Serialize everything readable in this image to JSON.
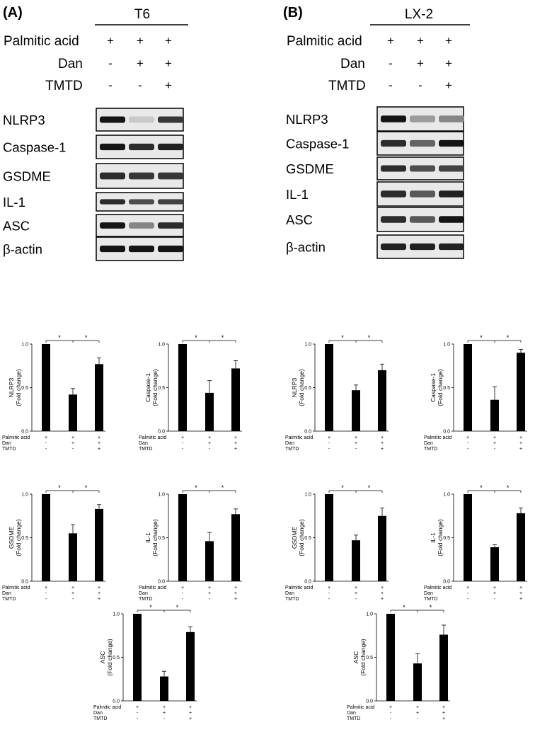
{
  "panels": [
    {
      "label": "(A)",
      "cell_line": "T6",
      "treatments": [
        {
          "name": "Palmitic acid",
          "signs": [
            "+",
            "+",
            "+"
          ]
        },
        {
          "name": "Dan",
          "signs": [
            "-",
            "+",
            "+"
          ]
        },
        {
          "name": "TMTD",
          "signs": [
            "-",
            "-",
            "+"
          ]
        }
      ],
      "blots": [
        {
          "label": "NLRP3",
          "intensity": [
            0.95,
            0.15,
            0.8
          ]
        },
        {
          "label": "Caspase-1",
          "intensity": [
            0.95,
            0.85,
            0.9
          ]
        },
        {
          "label": "GSDME",
          "intensity": [
            0.85,
            0.8,
            0.8
          ]
        },
        {
          "label": "IL-1",
          "intensity": [
            0.85,
            0.7,
            0.75
          ]
        },
        {
          "label": "ASC",
          "intensity": [
            0.95,
            0.45,
            0.85
          ]
        },
        {
          "label": "β-actin",
          "intensity": [
            0.95,
            0.95,
            0.95
          ]
        }
      ]
    },
    {
      "label": "(B)",
      "cell_line": "LX-2",
      "treatments": [
        {
          "name": "Palmitic acid",
          "signs": [
            "+",
            "+",
            "+"
          ]
        },
        {
          "name": "Dan",
          "signs": [
            "-",
            "+",
            "+"
          ]
        },
        {
          "name": "TMTD",
          "signs": [
            "-",
            "-",
            "+"
          ]
        }
      ],
      "blots": [
        {
          "label": "NLRP3",
          "intensity": [
            0.95,
            0.35,
            0.45
          ]
        },
        {
          "label": "Caspase-1",
          "intensity": [
            0.85,
            0.6,
            0.95
          ]
        },
        {
          "label": "GSDME",
          "intensity": [
            0.85,
            0.7,
            0.75
          ]
        },
        {
          "label": "IL-1",
          "intensity": [
            0.85,
            0.65,
            0.9
          ]
        },
        {
          "label": "ASC",
          "intensity": [
            0.85,
            0.65,
            0.95
          ]
        },
        {
          "label": "β-actin",
          "intensity": [
            0.9,
            0.9,
            0.9
          ]
        }
      ]
    }
  ],
  "chart_data": [
    {
      "type": "bar",
      "panel": "A",
      "ylabel": "NLRP3\n(Fold change)",
      "categories": [
        "1",
        "2",
        "3"
      ],
      "values": [
        1.0,
        0.42,
        0.77
      ],
      "errors": [
        0,
        0.07,
        0.07
      ],
      "ylim": [
        0,
        1.0
      ],
      "yticks": [
        "0.0",
        "0.5",
        "1.0"
      ],
      "significance": [
        "*",
        "*"
      ],
      "xrows": [
        {
          "name": "Palmitic acid",
          "signs": [
            "+",
            "+",
            "+"
          ]
        },
        {
          "name": "Dan",
          "signs": [
            "-",
            "+",
            "+"
          ]
        },
        {
          "name": "TMTD",
          "signs": [
            "-",
            "-",
            "+"
          ]
        }
      ]
    },
    {
      "type": "bar",
      "panel": "A",
      "ylabel": "Caspase-1\n(Fold change)",
      "categories": [
        "1",
        "2",
        "3"
      ],
      "values": [
        1.0,
        0.44,
        0.72
      ],
      "errors": [
        0,
        0.14,
        0.09
      ],
      "ylim": [
        0,
        1.0
      ],
      "yticks": [
        "0.0",
        "0.5",
        "1.0"
      ],
      "significance": [
        "*",
        "*"
      ],
      "xrows": [
        {
          "name": "Palmitic acid",
          "signs": [
            "+",
            "+",
            "+"
          ]
        },
        {
          "name": "Dan",
          "signs": [
            "-",
            "+",
            "+"
          ]
        },
        {
          "name": "TMTD",
          "signs": [
            "-",
            "-",
            "+"
          ]
        }
      ]
    },
    {
      "type": "bar",
      "panel": "B",
      "ylabel": "NLRP3\n(Fold change)",
      "categories": [
        "1",
        "2",
        "3"
      ],
      "values": [
        1.0,
        0.47,
        0.7
      ],
      "errors": [
        0,
        0.06,
        0.07
      ],
      "ylim": [
        0,
        1.0
      ],
      "yticks": [
        "0.0",
        "0.5",
        "1.0"
      ],
      "significance": [
        "*",
        "*"
      ],
      "xrows": [
        {
          "name": "Palmitic acid",
          "signs": [
            "+",
            "+",
            "+"
          ]
        },
        {
          "name": "Dan",
          "signs": [
            "-",
            "+",
            "+"
          ]
        },
        {
          "name": "TMTD",
          "signs": [
            "-",
            "-",
            "+"
          ]
        }
      ]
    },
    {
      "type": "bar",
      "panel": "B",
      "ylabel": "Caspase-1\n(Fold change)",
      "categories": [
        "1",
        "2",
        "3"
      ],
      "values": [
        1.0,
        0.36,
        0.9
      ],
      "errors": [
        0,
        0.15,
        0.04
      ],
      "ylim": [
        0,
        1.0
      ],
      "yticks": [
        "0.0",
        "0.5",
        "1.0"
      ],
      "significance": [
        "*",
        "*"
      ],
      "xrows": [
        {
          "name": "Palmitic acid",
          "signs": [
            "+",
            "+",
            "+"
          ]
        },
        {
          "name": "Dan",
          "signs": [
            "-",
            "+",
            "+"
          ]
        },
        {
          "name": "TMTD",
          "signs": [
            "-",
            "-",
            "+"
          ]
        }
      ]
    },
    {
      "type": "bar",
      "panel": "A",
      "ylabel": "GSDME\n(Fold change)",
      "categories": [
        "1",
        "2",
        "3"
      ],
      "values": [
        1.0,
        0.55,
        0.83
      ],
      "errors": [
        0,
        0.1,
        0.05
      ],
      "ylim": [
        0,
        1.0
      ],
      "yticks": [
        "0.0",
        "0.5",
        "1.0"
      ],
      "significance": [
        "*",
        "*"
      ],
      "xrows": [
        {
          "name": "Palmitic acid",
          "signs": [
            "+",
            "+",
            "+"
          ]
        },
        {
          "name": "Dan",
          "signs": [
            "-",
            "+",
            "+"
          ]
        },
        {
          "name": "TMTD",
          "signs": [
            "-",
            "-",
            "+"
          ]
        }
      ]
    },
    {
      "type": "bar",
      "panel": "A",
      "ylabel": "IL-1\n(Fold change)",
      "categories": [
        "1",
        "2",
        "3"
      ],
      "values": [
        1.0,
        0.46,
        0.77
      ],
      "errors": [
        0,
        0.1,
        0.06
      ],
      "ylim": [
        0,
        1.0
      ],
      "yticks": [
        "0.0",
        "0.5",
        "1.0"
      ],
      "significance": [
        "*",
        "*"
      ],
      "xrows": [
        {
          "name": "Palmitic acid",
          "signs": [
            "+",
            "+",
            "+"
          ]
        },
        {
          "name": "Dan",
          "signs": [
            "-",
            "+",
            "+"
          ]
        },
        {
          "name": "TMTD",
          "signs": [
            "-",
            "-",
            "+"
          ]
        }
      ]
    },
    {
      "type": "bar",
      "panel": "B",
      "ylabel": "GSDME\n(Fold change)",
      "categories": [
        "1",
        "2",
        "3"
      ],
      "values": [
        1.0,
        0.47,
        0.75
      ],
      "errors": [
        0,
        0.06,
        0.09
      ],
      "ylim": [
        0,
        1.0
      ],
      "yticks": [
        "0.0",
        "0.5",
        "1.0"
      ],
      "significance": [
        "*",
        "*"
      ],
      "xrows": [
        {
          "name": "Palmitic acid",
          "signs": [
            "+",
            "+",
            "+"
          ]
        },
        {
          "name": "Dan",
          "signs": [
            "-",
            "+",
            "+"
          ]
        },
        {
          "name": "TMTD",
          "signs": [
            "-",
            "-",
            "+"
          ]
        }
      ]
    },
    {
      "type": "bar",
      "panel": "B",
      "ylabel": "IL-1\n(Fold change)",
      "categories": [
        "1",
        "2",
        "3"
      ],
      "values": [
        1.0,
        0.39,
        0.78
      ],
      "errors": [
        0,
        0.03,
        0.06
      ],
      "ylim": [
        0,
        1.0
      ],
      "yticks": [
        "0.0",
        "0.5",
        "1.0"
      ],
      "significance": [
        "*",
        "*"
      ],
      "xrows": [
        {
          "name": "Palmitic acid",
          "signs": [
            "+",
            "+",
            "+"
          ]
        },
        {
          "name": "Dan",
          "signs": [
            "-",
            "+",
            "+"
          ]
        },
        {
          "name": "TMTD",
          "signs": [
            "-",
            "-",
            "+"
          ]
        }
      ]
    },
    {
      "type": "bar",
      "panel": "A",
      "ylabel": "ASC\n(Fold change)",
      "categories": [
        "1",
        "2",
        "3"
      ],
      "values": [
        1.0,
        0.28,
        0.79
      ],
      "errors": [
        0,
        0.06,
        0.06
      ],
      "ylim": [
        0,
        1.0
      ],
      "yticks": [
        "0.0",
        "0.5",
        "1.0"
      ],
      "significance": [
        "*",
        "*"
      ],
      "xrows": [
        {
          "name": "Palmitic acid",
          "signs": [
            "+",
            "+",
            "+"
          ]
        },
        {
          "name": "Dan",
          "signs": [
            "-",
            "+",
            "+"
          ]
        },
        {
          "name": "TMTD",
          "signs": [
            "-",
            "-",
            "+"
          ]
        }
      ]
    },
    {
      "type": "bar",
      "panel": "B",
      "ylabel": "ASC\n(Fold change)",
      "categories": [
        "1",
        "2",
        "3"
      ],
      "values": [
        1.0,
        0.43,
        0.76
      ],
      "errors": [
        0,
        0.11,
        0.11
      ],
      "ylim": [
        0,
        1.0
      ],
      "yticks": [
        "0.0",
        "0.5",
        "1.0"
      ],
      "significance": [
        "*",
        "*"
      ],
      "xrows": [
        {
          "name": "Palmitic acid",
          "signs": [
            "+",
            "+",
            "+"
          ]
        },
        {
          "name": "Dan",
          "signs": [
            "-",
            "+",
            "+"
          ]
        },
        {
          "name": "TMTD",
          "signs": [
            "-",
            "-",
            "+"
          ]
        }
      ]
    }
  ]
}
